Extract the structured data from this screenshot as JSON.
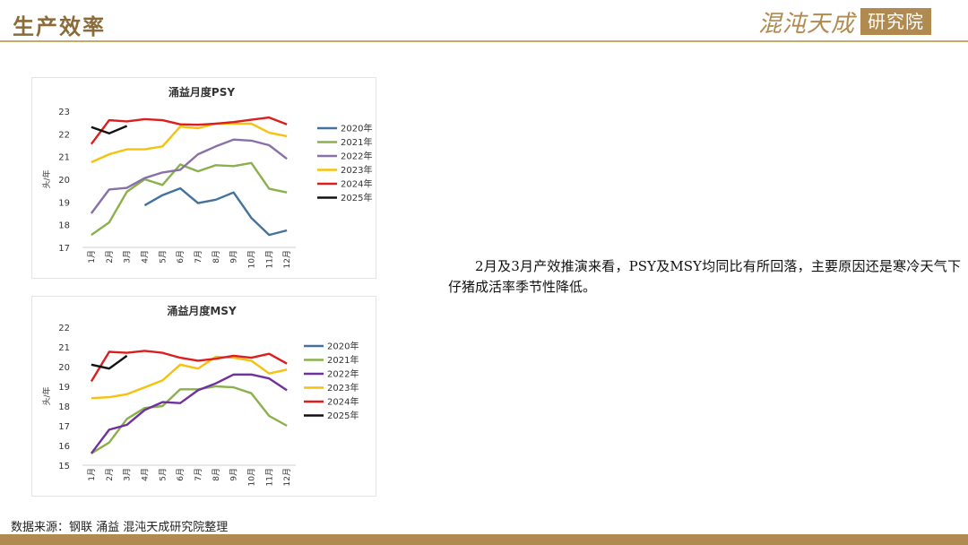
{
  "header": {
    "title": "生产效率"
  },
  "logo": {
    "main": "混沌天成",
    "box": "研究院"
  },
  "commentary": "2月及3月产效推演来看，PSY及MSY均同比有所回落，主要原因还是寒冷天气下仔猪成活率季节性降低。",
  "source": "数据来源：钢联 涌益 混沌天成研究院整理",
  "chart_data": [
    {
      "type": "line",
      "title": "涌益月度PSY",
      "ylabel": "头/年",
      "categories": [
        "1月",
        "2月",
        "3月",
        "4月",
        "5月",
        "6月",
        "7月",
        "8月",
        "9月",
        "10月",
        "11月",
        "12月"
      ],
      "ylim": [
        17,
        23
      ],
      "yticks": [
        17,
        18,
        19,
        20,
        21,
        22,
        23
      ],
      "legend_position": "right",
      "series": [
        {
          "name": "2020年",
          "color": "#44729f",
          "values": [
            null,
            null,
            null,
            18.85,
            19.3,
            19.6,
            18.95,
            19.1,
            19.42,
            18.3,
            17.55,
            17.75
          ]
        },
        {
          "name": "2021年",
          "color": "#8ab14c",
          "values": [
            17.55,
            18.1,
            19.45,
            20.0,
            19.75,
            20.65,
            20.35,
            20.62,
            20.58,
            20.72,
            19.58,
            19.42
          ]
        },
        {
          "name": "2022年",
          "color": "#8870a8",
          "values": [
            18.5,
            19.55,
            19.62,
            20.05,
            20.3,
            20.42,
            21.1,
            21.45,
            21.75,
            21.7,
            21.5,
            20.9
          ]
        },
        {
          "name": "2023年",
          "color": "#f6c10f",
          "values": [
            20.75,
            21.1,
            21.32,
            21.32,
            21.45,
            22.32,
            22.25,
            22.45,
            22.45,
            22.45,
            22.05,
            21.9
          ]
        },
        {
          "name": "2024年",
          "color": "#dc1e1e",
          "values": [
            21.55,
            22.6,
            22.55,
            22.65,
            22.6,
            22.42,
            22.4,
            22.45,
            22.52,
            22.62,
            22.72,
            22.42
          ]
        },
        {
          "name": "2025年",
          "color": "#111111",
          "values": [
            22.3,
            22.02,
            22.35,
            null,
            null,
            null,
            null,
            null,
            null,
            null,
            null,
            null
          ]
        }
      ]
    },
    {
      "type": "line",
      "title": "涌益月度MSY",
      "ylabel": "头/年",
      "categories": [
        "1月",
        "2月",
        "3月",
        "4月",
        "5月",
        "6月",
        "7月",
        "8月",
        "9月",
        "10月",
        "11月",
        "12月"
      ],
      "ylim": [
        15,
        22
      ],
      "yticks": [
        15,
        16,
        17,
        18,
        19,
        20,
        21,
        22
      ],
      "legend_position": "right",
      "series": [
        {
          "name": "2020年",
          "color": "#44729f",
          "values": [
            null,
            null,
            null,
            null,
            null,
            null,
            null,
            null,
            null,
            null,
            null,
            null
          ]
        },
        {
          "name": "2021年",
          "color": "#8ab14c",
          "values": [
            15.6,
            16.15,
            17.35,
            17.9,
            18.0,
            18.85,
            18.85,
            19.0,
            18.95,
            18.65,
            17.5,
            17.0
          ]
        },
        {
          "name": "2022年",
          "color": "#7030a0",
          "values": [
            15.6,
            16.8,
            17.05,
            17.8,
            18.2,
            18.15,
            18.8,
            19.15,
            19.6,
            19.6,
            19.4,
            18.8
          ]
        },
        {
          "name": "2023年",
          "color": "#f6c10f",
          "values": [
            18.4,
            18.45,
            18.6,
            18.95,
            19.3,
            20.1,
            19.9,
            20.5,
            20.45,
            20.3,
            19.65,
            19.85
          ]
        },
        {
          "name": "2024年",
          "color": "#dc1e1e",
          "values": [
            19.25,
            20.75,
            20.7,
            20.8,
            20.7,
            20.45,
            20.3,
            20.4,
            20.55,
            20.45,
            20.65,
            20.15
          ]
        },
        {
          "name": "2025年",
          "color": "#111111",
          "values": [
            20.1,
            19.9,
            20.55,
            null,
            null,
            null,
            null,
            null,
            null,
            null,
            null,
            null
          ]
        }
      ]
    }
  ]
}
